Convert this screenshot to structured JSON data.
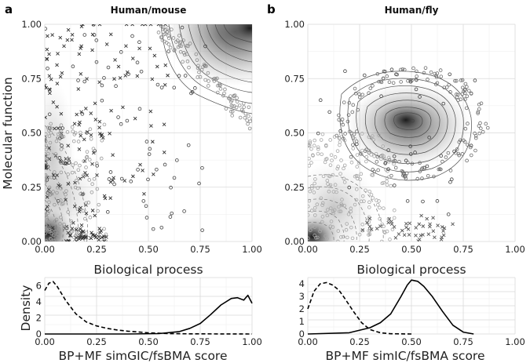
{
  "chart_data": [
    {
      "panel": "a",
      "type": "scatter",
      "title": "Human/mouse",
      "xlabel": "Biological process",
      "ylabel": "Molecular function",
      "xlim": [
        0,
        1
      ],
      "ylim": [
        0,
        1
      ],
      "xticks": [
        "0.00",
        "0.25",
        "0.50",
        "0.75",
        "1.00"
      ],
      "yticks": [
        "0.00",
        "0.25",
        "0.50",
        "0.75",
        "1.00"
      ],
      "density": {
        "type": "line",
        "xlabel": "BP+MF simGIC/fsBMA score",
        "ylabel": "Density",
        "xlim": [
          0,
          1
        ],
        "ylim": [
          0,
          7
        ],
        "xticks": [
          "0.00",
          "0.25",
          "0.50",
          "0.75",
          "1.00"
        ],
        "yticks": [
          "0",
          "2",
          "4",
          "6"
        ],
        "series": [
          {
            "name": "dashed",
            "x": [
              0,
              0.02,
              0.04,
              0.06,
              0.1,
              0.15,
              0.2,
              0.25,
              0.3,
              0.35,
              0.4,
              0.45,
              0.5,
              0.6,
              0.7,
              1.0
            ],
            "y": [
              5.4,
              6.3,
              6.5,
              5.9,
              4.2,
              2.5,
              1.5,
              1.0,
              0.7,
              0.5,
              0.35,
              0.25,
              0.15,
              0.05,
              0.02,
              0
            ]
          },
          {
            "name": "solid",
            "x": [
              0,
              0.4,
              0.55,
              0.65,
              0.7,
              0.75,
              0.8,
              0.85,
              0.9,
              0.93,
              0.96,
              0.98,
              1.0
            ],
            "y": [
              0,
              0,
              0.05,
              0.3,
              0.7,
              1.3,
              2.4,
              3.6,
              4.4,
              4.5,
              4.2,
              4.8,
              3.8
            ]
          }
        ]
      }
    },
    {
      "panel": "b",
      "type": "scatter",
      "title": "Human/fly",
      "xlabel": "Biological process",
      "ylabel": "",
      "xlim": [
        0,
        1
      ],
      "ylim": [
        0,
        1
      ],
      "xticks": [
        "0.00",
        "0.25",
        "0.50",
        "0.75",
        "1.00"
      ],
      "yticks": [
        "0.00",
        "0.25",
        "0.50",
        "0.75",
        "1.00"
      ],
      "density": {
        "type": "line",
        "xlabel": "BP+MF simIC/fsBMA score",
        "ylabel": "",
        "xlim": [
          0,
          1
        ],
        "ylim": [
          0,
          4.5
        ],
        "xticks": [
          "0.00",
          "0.25",
          "0.50",
          "0.75",
          "1.00"
        ],
        "yticks": [
          "0",
          "1",
          "2",
          "3",
          "4"
        ],
        "series": [
          {
            "name": "dashed",
            "x": [
              0,
              0.03,
              0.06,
              0.09,
              0.12,
              0.15,
              0.18,
              0.22,
              0.26,
              0.3,
              0.35,
              0.4,
              0.5
            ],
            "y": [
              2.0,
              3.4,
              4.0,
              4.1,
              3.9,
              3.5,
              2.8,
              1.8,
              0.9,
              0.35,
              0.1,
              0.02,
              0
            ]
          },
          {
            "name": "solid",
            "x": [
              0,
              0.2,
              0.3,
              0.35,
              0.4,
              0.45,
              0.48,
              0.5,
              0.53,
              0.56,
              0.6,
              0.65,
              0.7,
              0.75,
              0.8
            ],
            "y": [
              0,
              0.1,
              0.5,
              0.9,
              1.6,
              3.0,
              3.9,
              4.3,
              4.2,
              3.8,
              3.0,
              1.8,
              0.7,
              0.15,
              0
            ]
          }
        ]
      }
    }
  ]
}
